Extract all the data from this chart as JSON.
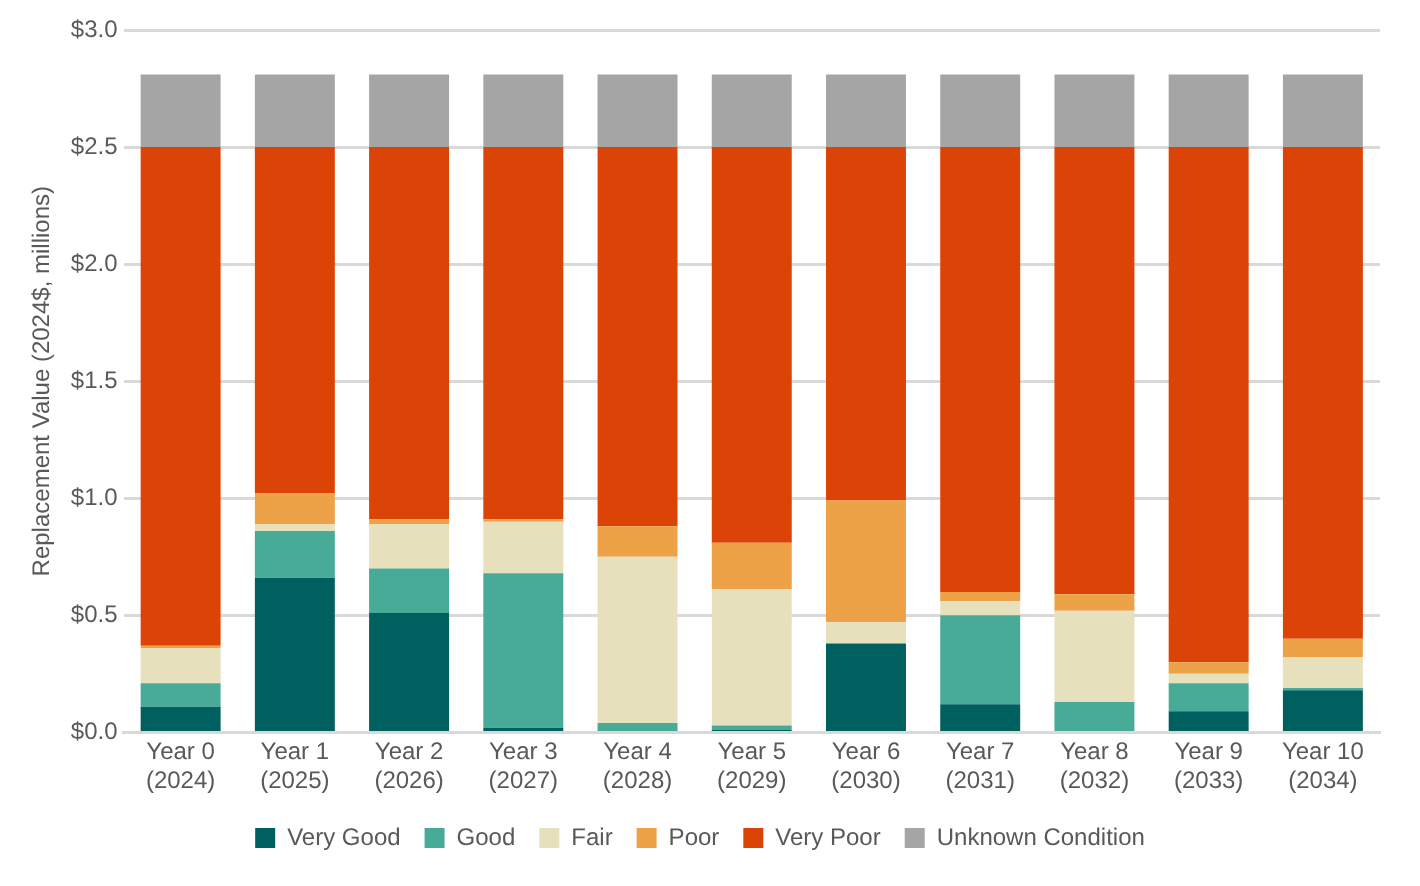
{
  "chart_data": {
    "type": "bar",
    "stacked": true,
    "ylabel": "Replacement Value (2024$, millions)",
    "categories": [
      "Year 0\n(2024)",
      "Year 1\n(2025)",
      "Year 2\n(2026)",
      "Year 3\n(2027)",
      "Year 4\n(2028)",
      "Year 5\n(2029)",
      "Year 6\n(2030)",
      "Year 7\n(2031)",
      "Year 8\n(2032)",
      "Year 9\n(2033)",
      "Year 10\n(2034)"
    ],
    "series": [
      {
        "name": "Very Good",
        "color": "#00605f",
        "values": [
          0.11,
          0.66,
          0.51,
          0.02,
          0,
          0.01,
          0.38,
          0.12,
          0,
          0.09,
          0.18
        ]
      },
      {
        "name": "Good",
        "color": "#48ab98",
        "values": [
          0.1,
          0.2,
          0.19,
          0.66,
          0.04,
          0.02,
          0,
          0.38,
          0.13,
          0.12,
          0.01
        ]
      },
      {
        "name": "Fair",
        "color": "#e6e0bc",
        "values": [
          0.15,
          0.03,
          0.19,
          0.22,
          0.71,
          0.58,
          0.09,
          0.06,
          0.39,
          0.04,
          0.13
        ]
      },
      {
        "name": "Poor",
        "color": "#eda247",
        "values": [
          0.01,
          0.13,
          0.02,
          0.01,
          0.13,
          0.2,
          0.52,
          0.04,
          0.07,
          0.05,
          0.08
        ]
      },
      {
        "name": "Very Poor",
        "color": "#dc4306",
        "values": [
          2.13,
          1.48,
          1.59,
          1.59,
          1.62,
          1.69,
          1.51,
          1.9,
          1.91,
          2.2,
          2.1
        ]
      },
      {
        "name": "Unknown Condition",
        "color": "#a5a5a5",
        "values": [
          0.31,
          0.31,
          0.31,
          0.31,
          0.31,
          0.31,
          0.31,
          0.31,
          0.31,
          0.31,
          0.31
        ]
      }
    ],
    "ylim": [
      0,
      3
    ],
    "yticks": [
      {
        "value": 0,
        "label": "$0.0"
      },
      {
        "value": 0.5,
        "label": "$0.5"
      },
      {
        "value": 1,
        "label": "$1.0"
      },
      {
        "value": 1.5,
        "label": "$1.5"
      },
      {
        "value": 2,
        "label": "$2.0"
      },
      {
        "value": 2.5,
        "label": "$2.5"
      },
      {
        "value": 3,
        "label": "$3.0"
      }
    ],
    "grid": "y",
    "legend": "bottom"
  }
}
